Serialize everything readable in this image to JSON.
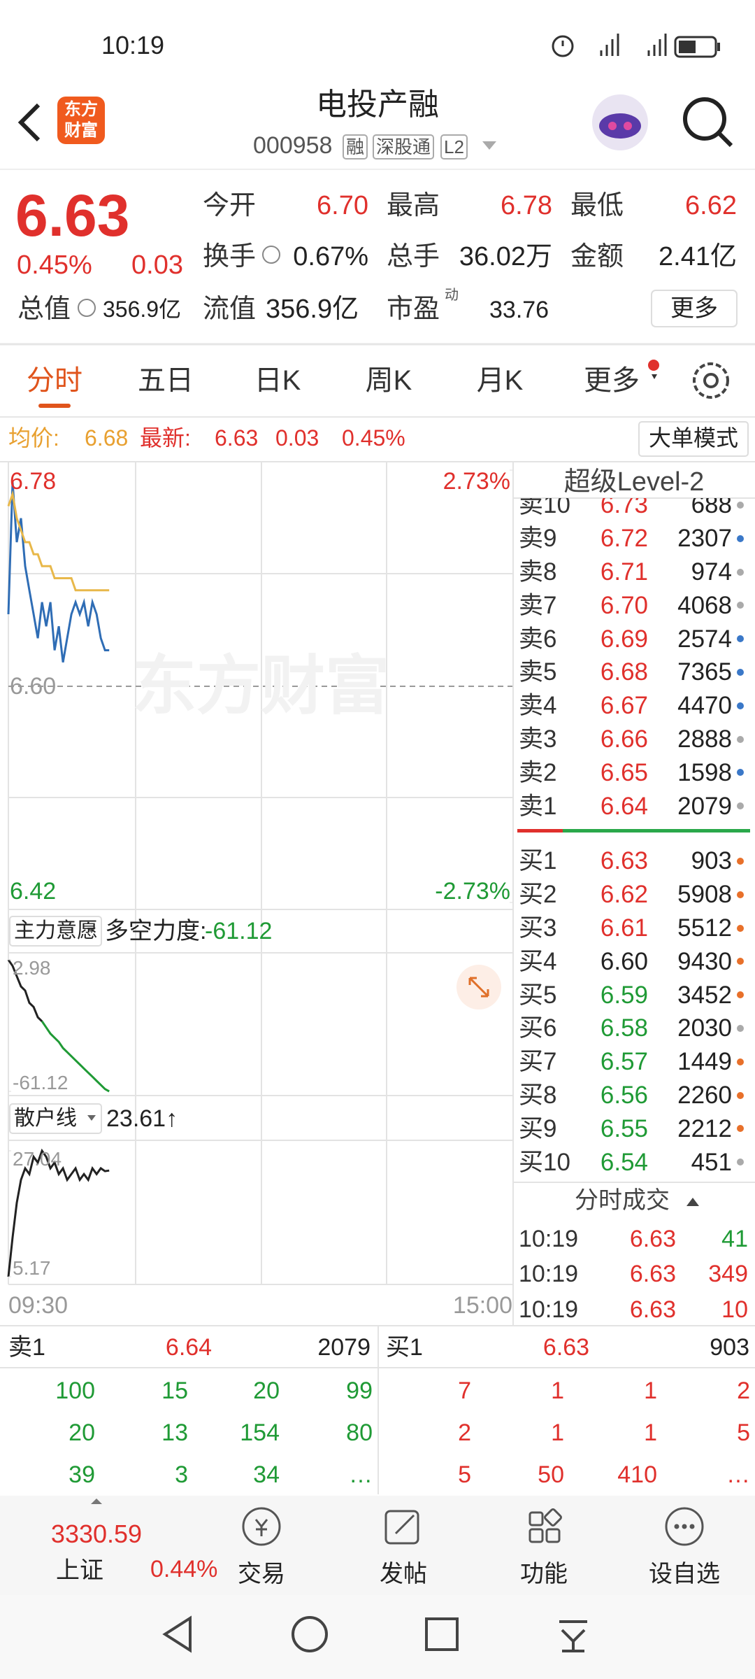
{
  "status_bar": {
    "time": "10:19"
  },
  "header": {
    "logo": [
      "东方",
      "财富"
    ],
    "title": "电投产融",
    "code": "000958",
    "tags": [
      "融",
      "深股通",
      "L2"
    ]
  },
  "quote": {
    "price": "6.63",
    "change_pct": "0.45%",
    "change": "0.03",
    "row1": [
      {
        "label": "今开",
        "value": "6.70",
        "color": "#e0302c"
      },
      {
        "label": "最高",
        "value": "6.78",
        "color": "#e0302c"
      },
      {
        "label": "最低",
        "value": "6.62",
        "color": "#e0302c"
      }
    ],
    "row2": [
      {
        "label": "换手",
        "value": "0.67%",
        "color": "#222"
      },
      {
        "label": "总手",
        "value": "36.02万",
        "color": "#222"
      },
      {
        "label": "金额",
        "value": "2.41亿",
        "color": "#222"
      }
    ],
    "total_value": {
      "label": "总值",
      "value": "356.9亿"
    },
    "float_value": {
      "label": "流值",
      "value": "356.9亿"
    },
    "pe": {
      "label": "市盈",
      "mark": "动",
      "value": "33.76"
    },
    "more_button": "更多"
  },
  "tabs": [
    "分时",
    "五日",
    "日K",
    "周K",
    "月K",
    "更多"
  ],
  "info_bar": {
    "avg_label": "均价:",
    "avg": "6.68",
    "latest_label": "最新:",
    "latest": "6.63",
    "change": "0.03",
    "change_pct": "0.45%",
    "button": "大单模式"
  },
  "intraday_chart": {
    "watermark": "东方财富",
    "ylim": [
      6.42,
      6.78
    ],
    "yticks": [
      6.78,
      {
        "value": 6.6,
        "label": "6.60"
      },
      6.42
    ],
    "ytick_colors": [
      "#e0302c",
      "#999999",
      "#1f9a35"
    ],
    "y2lim": [
      -2.73,
      2.73
    ],
    "y2ticks": [
      {
        "value": 2.73,
        "label": "2.73%"
      },
      {
        "value": -2.73,
        "label": "-2.73%"
      }
    ],
    "y2tick_colors": [
      "#e0302c",
      "#1f9a35"
    ],
    "x_labels": [
      "09:30",
      "15:00"
    ],
    "series": [
      {
        "color": "#2f6db5",
        "values": [
          6.66,
          6.77,
          6.72,
          6.74,
          6.7,
          6.68,
          6.66,
          6.64,
          6.67,
          6.65,
          6.67,
          6.63,
          6.65,
          6.62,
          6.64,
          6.66,
          6.67,
          6.66,
          6.67,
          6.65,
          6.67,
          6.66,
          6.64,
          6.63,
          6.63
        ]
      },
      {
        "color": "#e8b84a",
        "values": [
          6.75,
          6.76,
          6.74,
          6.73,
          6.72,
          6.72,
          6.71,
          6.71,
          6.7,
          6.7,
          6.7,
          6.69,
          6.69,
          6.69,
          6.69,
          6.69,
          6.68,
          6.68,
          6.68,
          6.68,
          6.68,
          6.68,
          6.68,
          6.68,
          6.68
        ]
      }
    ]
  },
  "indicator1": {
    "selector": "主力意愿",
    "label": "多空力度:",
    "value": "-61.12",
    "ylim": [
      -61.12,
      2.98
    ],
    "yticks": [
      2.98,
      -61.12
    ],
    "series": [
      {
        "color": "#222222",
        "values": [
          2.98,
          0,
          -5,
          -10,
          -12,
          -18,
          -20,
          -25,
          -27,
          null,
          null,
          null,
          null,
          null,
          null,
          null,
          null,
          null,
          null,
          null,
          null,
          null,
          null,
          null,
          null
        ]
      },
      {
        "color": "#1f9a35",
        "values": [
          null,
          null,
          null,
          null,
          null,
          null,
          null,
          null,
          -27,
          -30,
          -33,
          -35,
          -37,
          -40,
          -42,
          -44,
          -46,
          -48,
          -50,
          -52,
          -54,
          -56,
          -58,
          -60,
          -61.12
        ]
      }
    ]
  },
  "indicator2": {
    "selector": "散户线",
    "value": "23.61↑",
    "ylim": [
      5.17,
      27.04
    ],
    "yticks": [
      27.04,
      5.17
    ],
    "series": [
      {
        "color": "#222222",
        "values": [
          5.17,
          12,
          18,
          22,
          24,
          23,
          26,
          25,
          27.04,
          26,
          24,
          25,
          23,
          24,
          22,
          23,
          24,
          22,
          23,
          22,
          24,
          23,
          24,
          23.5,
          23.61
        ]
      }
    ]
  },
  "level2": {
    "title": "超级Level-2",
    "sell": [
      {
        "label": "卖10",
        "price": "6.73",
        "volume": "688",
        "color": "#e0302c",
        "dot": "#aaaaaa"
      },
      {
        "label": "卖9",
        "price": "6.72",
        "volume": "2307",
        "color": "#e0302c",
        "dot": "#3a78c8"
      },
      {
        "label": "卖8",
        "price": "6.71",
        "volume": "974",
        "color": "#e0302c",
        "dot": "#aaaaaa"
      },
      {
        "label": "卖7",
        "price": "6.70",
        "volume": "4068",
        "color": "#e0302c",
        "dot": "#aaaaaa"
      },
      {
        "label": "卖6",
        "price": "6.69",
        "volume": "2574",
        "color": "#e0302c",
        "dot": "#3a78c8"
      },
      {
        "label": "卖5",
        "price": "6.68",
        "volume": "7365",
        "color": "#e0302c",
        "dot": "#3a78c8"
      },
      {
        "label": "卖4",
        "price": "6.67",
        "volume": "4470",
        "color": "#e0302c",
        "dot": "#3a78c8"
      },
      {
        "label": "卖3",
        "price": "6.66",
        "volume": "2888",
        "color": "#e0302c",
        "dot": "#aaaaaa"
      },
      {
        "label": "卖2",
        "price": "6.65",
        "volume": "1598",
        "color": "#e0302c",
        "dot": "#3a78c8"
      },
      {
        "label": "卖1",
        "price": "6.64",
        "volume": "2079",
        "color": "#e0302c",
        "dot": "#aaaaaa"
      }
    ],
    "buy": [
      {
        "label": "买1",
        "price": "6.63",
        "volume": "903",
        "color": "#e0302c",
        "dot": "#e8702a"
      },
      {
        "label": "买2",
        "price": "6.62",
        "volume": "5908",
        "color": "#e0302c",
        "dot": "#e8702a"
      },
      {
        "label": "买3",
        "price": "6.61",
        "volume": "5512",
        "color": "#e0302c",
        "dot": "#e8702a"
      },
      {
        "label": "买4",
        "price": "6.60",
        "volume": "9430",
        "color": "#222222",
        "dot": "#e8702a"
      },
      {
        "label": "买5",
        "price": "6.59",
        "volume": "3452",
        "color": "#1f9a35",
        "dot": "#e8702a"
      },
      {
        "label": "买6",
        "price": "6.58",
        "volume": "2030",
        "color": "#1f9a35",
        "dot": "#aaaaaa"
      },
      {
        "label": "买7",
        "price": "6.57",
        "volume": "1449",
        "color": "#1f9a35",
        "dot": "#e8702a"
      },
      {
        "label": "买8",
        "price": "6.56",
        "volume": "2260",
        "color": "#1f9a35",
        "dot": "#e8702a"
      },
      {
        "label": "买9",
        "price": "6.55",
        "volume": "2212",
        "color": "#1f9a35",
        "dot": "#e8702a"
      },
      {
        "label": "买10",
        "price": "6.54",
        "volume": "451",
        "color": "#1f9a35",
        "dot": "#aaaaaa"
      }
    ]
  },
  "trades": {
    "title": "分时成交",
    "rows": [
      {
        "time": "10:19",
        "price": "6.63",
        "volume": "41",
        "color": "#1f9a35"
      },
      {
        "time": "10:19",
        "price": "6.63",
        "volume": "349",
        "color": "#e0302c"
      },
      {
        "time": "10:19",
        "price": "6.63",
        "volume": "10",
        "color": "#e0302c"
      }
    ]
  },
  "bottom_book": {
    "sell": {
      "label": "卖1",
      "price": "6.64",
      "volume": "2079",
      "orders": [
        [
          "100",
          "15",
          "20",
          "99"
        ],
        [
          "20",
          "13",
          "154",
          "80"
        ],
        [
          "39",
          "3",
          "34",
          "…"
        ]
      ]
    },
    "buy": {
      "label": "买1",
      "price": "6.63",
      "volume": "903",
      "orders": [
        [
          "7",
          "1",
          "1",
          "2"
        ],
        [
          "2",
          "1",
          "1",
          "5"
        ],
        [
          "5",
          "50",
          "410",
          "…"
        ]
      ]
    }
  },
  "nav": {
    "index": {
      "value": "3330.59",
      "name": "上证",
      "change": "0.44%"
    },
    "items": [
      "交易",
      "发帖",
      "功能",
      "设自选"
    ]
  }
}
